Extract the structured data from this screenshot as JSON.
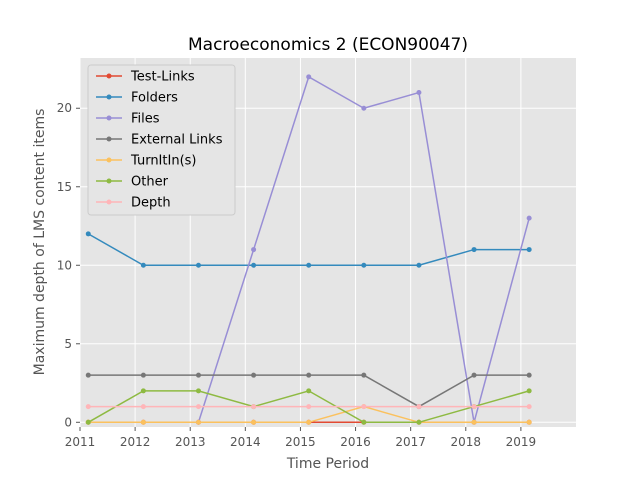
{
  "chart_data": {
    "type": "line",
    "title": "Macroeconomics 2 (ECON90047)",
    "xlabel": "Time Period",
    "ylabel": "Maximum depth of LMS content items",
    "xlim": [
      2011,
      2020
    ],
    "ylim": [
      -0.3,
      23.2
    ],
    "xticks": [
      2011,
      2012,
      2013,
      2014,
      2015,
      2016,
      2017,
      2018,
      2019
    ],
    "xtick_labels": [
      "2011",
      "2012",
      "2013",
      "2014",
      "2015",
      "2016",
      "2017",
      "2018",
      "2019"
    ],
    "yticks": [
      0,
      5,
      10,
      15,
      20
    ],
    "ytick_labels": [
      "0",
      "5",
      "10",
      "15",
      "20"
    ],
    "grid": true,
    "legend_position": "top-left",
    "x": [
      2011.15,
      2012.15,
      2013.15,
      2014.15,
      2015.15,
      2016.15,
      2017.15,
      2018.15,
      2019.15
    ],
    "series": [
      {
        "name": "Test-Links",
        "color": "#e24a33",
        "values": [
          0,
          0,
          0,
          0,
          0,
          0,
          0,
          0,
          0
        ]
      },
      {
        "name": "Folders",
        "color": "#348abd",
        "values": [
          12,
          10,
          10,
          10,
          10,
          10,
          10,
          11,
          11
        ]
      },
      {
        "name": "Files",
        "color": "#988ed5",
        "values": [
          null,
          null,
          0,
          11,
          22,
          20,
          21,
          0,
          13
        ]
      },
      {
        "name": "External Links",
        "color": "#777777",
        "values": [
          3,
          3,
          3,
          3,
          3,
          3,
          1,
          3,
          3
        ]
      },
      {
        "name": "TurnItIn(s)",
        "color": "#fbc15e",
        "values": [
          0,
          0,
          0,
          0,
          0,
          1,
          0,
          0,
          0
        ]
      },
      {
        "name": "Other",
        "color": "#8eba42",
        "values": [
          0,
          2,
          2,
          1,
          2,
          0,
          0,
          1,
          2
        ]
      },
      {
        "name": "Depth",
        "color": "#ffb5b8",
        "values": [
          1,
          1,
          1,
          1,
          1,
          1,
          1,
          1,
          1
        ]
      }
    ]
  }
}
